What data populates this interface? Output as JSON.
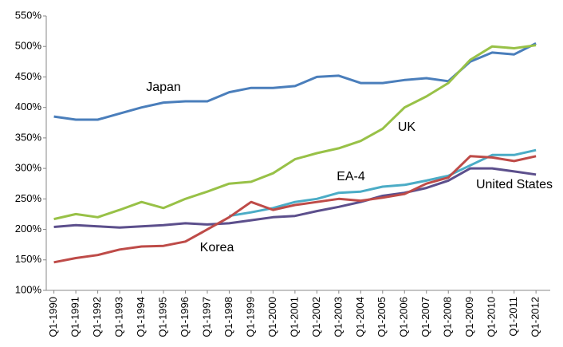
{
  "chart_data": {
    "type": "line",
    "categories": [
      "Q1-1990",
      "Q1-1991",
      "Q1-1992",
      "Q1-1993",
      "Q1-1994",
      "Q1-1995",
      "Q1-1996",
      "Q1-1997",
      "Q1-1998",
      "Q1-1999",
      "Q1-2000",
      "Q1-2001",
      "Q1-2002",
      "Q1-2003",
      "Q1-2004",
      "Q1-2005",
      "Q1-2006",
      "Q1-2007",
      "Q1-2008",
      "Q1-2009",
      "Q1-2010",
      "Q1-2011",
      "Q1-2012"
    ],
    "series": [
      {
        "name": "Japan",
        "color": "#4a7ebb",
        "values": [
          385,
          380,
          380,
          390,
          400,
          408,
          410,
          410,
          425,
          432,
          432,
          435,
          450,
          452,
          440,
          440,
          445,
          448,
          443,
          475,
          490,
          487,
          505
        ]
      },
      {
        "name": "UK",
        "color": "#98c147",
        "values": [
          217,
          225,
          220,
          232,
          245,
          235,
          250,
          262,
          275,
          278,
          292,
          315,
          325,
          333,
          345,
          365,
          400,
          418,
          440,
          478,
          500,
          497,
          502
        ]
      },
      {
        "name": "EA-4",
        "color": "#4bacc6",
        "values": [
          null,
          null,
          null,
          null,
          null,
          null,
          null,
          null,
          222,
          228,
          235,
          245,
          250,
          260,
          262,
          270,
          273,
          280,
          288,
          305,
          322,
          322,
          330
        ]
      },
      {
        "name": "United States",
        "color": "#5c4f8c",
        "values": [
          204,
          207,
          205,
          203,
          205,
          207,
          210,
          208,
          210,
          215,
          220,
          222,
          230,
          237,
          245,
          255,
          260,
          268,
          280,
          300,
          300,
          295,
          290
        ]
      },
      {
        "name": "Korea",
        "color": "#be4b48",
        "values": [
          146,
          153,
          158,
          167,
          172,
          173,
          180,
          200,
          220,
          245,
          232,
          240,
          245,
          250,
          247,
          252,
          258,
          275,
          285,
          320,
          318,
          312,
          320
        ]
      }
    ],
    "ylim": [
      100,
      550
    ],
    "yticks": [
      {
        "value": 100,
        "label": "100%"
      },
      {
        "value": 150,
        "label": "150%"
      },
      {
        "value": 200,
        "label": "200%"
      },
      {
        "value": 250,
        "label": "250%"
      },
      {
        "value": 300,
        "label": "300%"
      },
      {
        "value": 350,
        "label": "350%"
      },
      {
        "value": 400,
        "label": "400%"
      },
      {
        "value": 450,
        "label": "450%"
      },
      {
        "value": 500,
        "label": "500%"
      },
      {
        "value": 550,
        "label": "550%"
      }
    ]
  }
}
